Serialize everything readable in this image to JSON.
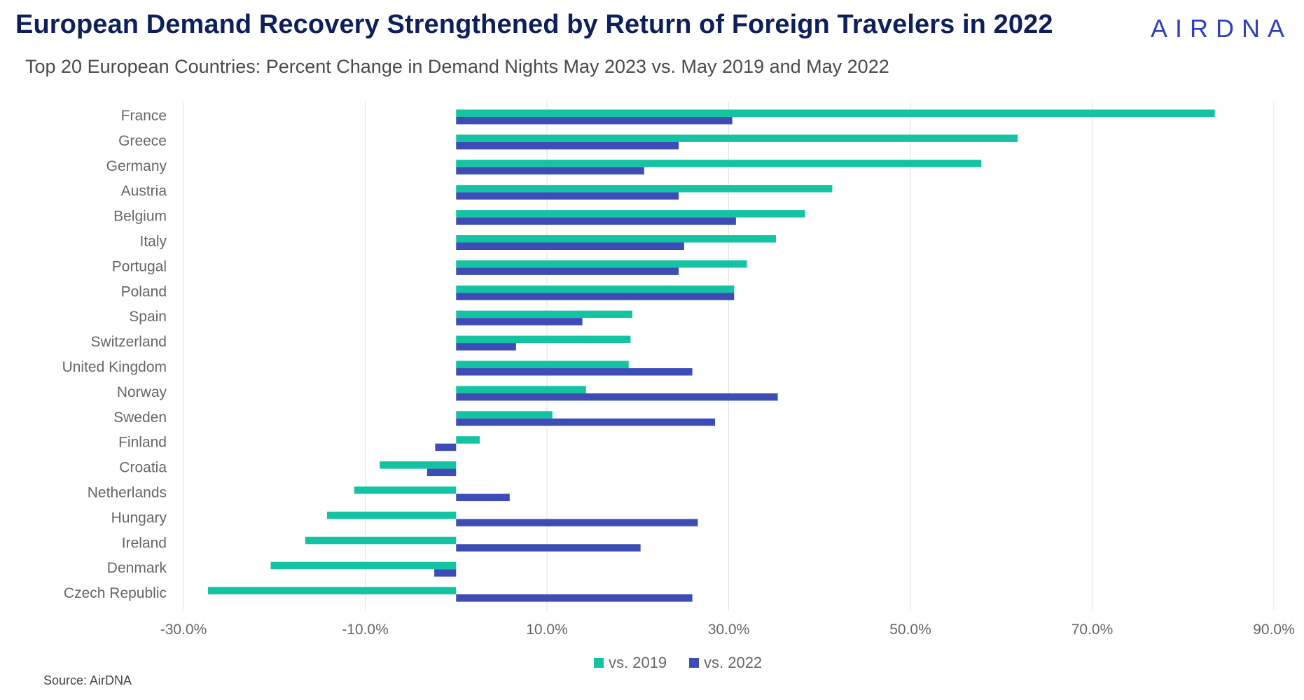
{
  "header": {
    "title": "European Demand Recovery Strengthened by Return of Foreign Travelers in 2022",
    "logo": "AIRDNA",
    "subtitle": "Top 20 European Countries: Percent Change in Demand Nights May 2023 vs. May 2019 and May 2022"
  },
  "footer": {
    "source": "Source: AirDNA"
  },
  "colors": {
    "vs2019": "#14c3a2",
    "vs2022": "#3e4db6",
    "grid": "#e3e3e3",
    "tick_text": "#666666",
    "title": "#0f1f5c"
  },
  "chart_data": {
    "type": "bar",
    "orientation": "horizontal",
    "categories": [
      "France",
      "Greece",
      "Germany",
      "Austria",
      "Belgium",
      "Italy",
      "Portugal",
      "Poland",
      "Spain",
      "Switzerland",
      "United Kingdom",
      "Norway",
      "Sweden",
      "Finland",
      "Croatia",
      "Netherlands",
      "Hungary",
      "Ireland",
      "Denmark",
      "Czech Republic"
    ],
    "series": [
      {
        "name": "vs. 2019",
        "values": [
          83.5,
          61.8,
          57.8,
          41.4,
          38.4,
          35.2,
          32.0,
          30.6,
          19.4,
          19.2,
          19.0,
          14.3,
          10.6,
          2.6,
          -8.4,
          -11.2,
          -14.2,
          -16.6,
          -20.4,
          -27.3
        ]
      },
      {
        "name": "vs. 2022",
        "values": [
          30.4,
          24.5,
          20.7,
          24.5,
          30.8,
          25.1,
          24.5,
          30.6,
          13.9,
          6.6,
          26.0,
          35.4,
          28.5,
          -2.3,
          -3.2,
          5.9,
          26.6,
          20.3,
          -2.4,
          26.0
        ]
      }
    ],
    "xlim": [
      -30,
      90
    ],
    "xticks": [
      "-30.0%",
      "-10.0%",
      "10.0%",
      "30.0%",
      "50.0%",
      "70.0%",
      "90.0%"
    ],
    "xtick_values": [
      -30,
      -10,
      10,
      30,
      50,
      70,
      90
    ],
    "grid": true,
    "legend_position": "bottom"
  }
}
